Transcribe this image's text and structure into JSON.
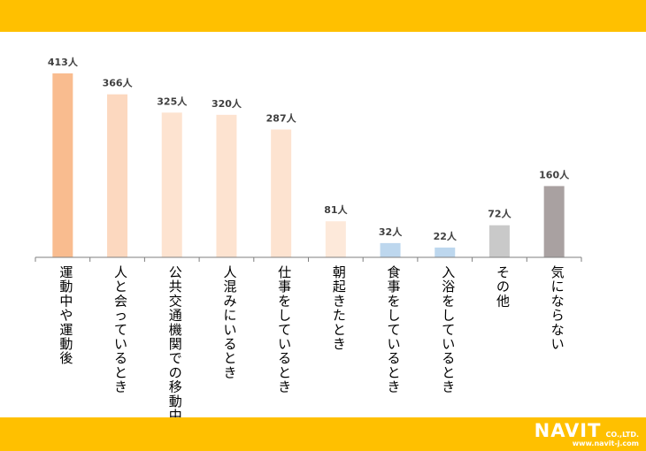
{
  "chart_data": {
    "type": "bar",
    "title": "",
    "xlabel": "",
    "ylabel": "",
    "ylim": [
      0,
      440
    ],
    "grid": false,
    "legend": "none",
    "categories": [
      "運動中や運動後",
      "人と会っているとき",
      "公共交通機関での移動中",
      "人混みにいるとき",
      "仕事をしているとき",
      "朝起きたとき",
      "食事をしているとき",
      "入浴をしているとき",
      "その他",
      "気にならない"
    ],
    "values": [
      413,
      366,
      325,
      320,
      287,
      81,
      32,
      22,
      72,
      160
    ],
    "data_labels": [
      "413人",
      "366人",
      "325人",
      "320人",
      "287人",
      "81人",
      "32人",
      "22人",
      "72人",
      "160人"
    ],
    "bar_colors": [
      "#F9BC8F",
      "#FCD8BF",
      "#FDE3D0",
      "#FDE3D0",
      "#FDE3D0",
      "#FDE9DA",
      "#BDD7EE",
      "#BDD7EE",
      "#C9C9C9",
      "#A9A1A1"
    ]
  },
  "brand": {
    "logo_name": "NAVIT",
    "logo_suffix": "CO.,LTD.",
    "url": "www.navit-j.com",
    "band_color": "#FFC000"
  }
}
